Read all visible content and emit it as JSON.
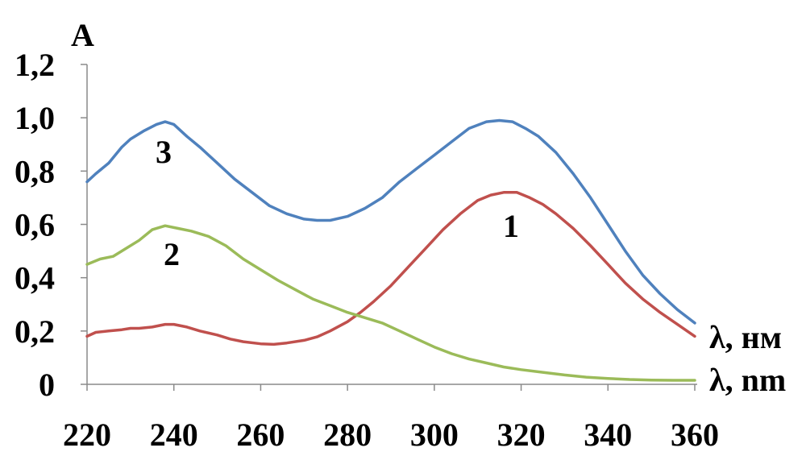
{
  "chart_data": {
    "type": "line",
    "title": "",
    "ylabel": "A",
    "xlabels": [
      "λ, нм",
      "λ, nm"
    ],
    "xlim": [
      220,
      360
    ],
    "ylim": [
      0,
      1.2
    ],
    "x_ticks": [
      "220",
      "240",
      "260",
      "280",
      "300",
      "320",
      "340",
      "360"
    ],
    "y_ticks": [
      "0",
      "0,2",
      "0,4",
      "0,6",
      "0,8",
      "1,0",
      "1,2"
    ],
    "grid": false,
    "legend": "none",
    "series": [
      {
        "name": "1",
        "color": "#c0504d",
        "x": [
          220,
          222,
          225,
          228,
          230,
          232,
          235,
          238,
          240,
          243,
          246,
          250,
          253,
          256,
          260,
          263,
          266,
          270,
          273,
          276,
          280,
          283,
          286,
          290,
          294,
          298,
          302,
          306,
          310,
          313,
          316,
          319,
          322,
          325,
          328,
          332,
          336,
          340,
          344,
          348,
          352,
          356,
          360
        ],
        "values": [
          0.18,
          0.195,
          0.2,
          0.205,
          0.21,
          0.21,
          0.215,
          0.225,
          0.225,
          0.215,
          0.2,
          0.185,
          0.17,
          0.16,
          0.152,
          0.15,
          0.155,
          0.165,
          0.178,
          0.2,
          0.235,
          0.27,
          0.31,
          0.37,
          0.44,
          0.51,
          0.58,
          0.64,
          0.69,
          0.71,
          0.72,
          0.72,
          0.7,
          0.675,
          0.64,
          0.585,
          0.52,
          0.45,
          0.38,
          0.32,
          0.27,
          0.225,
          0.18
        ]
      },
      {
        "name": "2",
        "color": "#9bbb59",
        "x": [
          220,
          223,
          226,
          229,
          232,
          235,
          238,
          241,
          244,
          248,
          252,
          256,
          260,
          264,
          268,
          272,
          276,
          280,
          284,
          288,
          292,
          296,
          300,
          304,
          308,
          312,
          316,
          320,
          325,
          330,
          335,
          340,
          345,
          350,
          355,
          360
        ],
        "values": [
          0.45,
          0.47,
          0.48,
          0.51,
          0.54,
          0.58,
          0.595,
          0.585,
          0.575,
          0.555,
          0.52,
          0.47,
          0.43,
          0.39,
          0.355,
          0.32,
          0.295,
          0.27,
          0.25,
          0.23,
          0.2,
          0.17,
          0.14,
          0.115,
          0.095,
          0.08,
          0.065,
          0.055,
          0.045,
          0.035,
          0.027,
          0.022,
          0.018,
          0.016,
          0.015,
          0.015
        ]
      },
      {
        "name": "3",
        "color": "#4f81bd",
        "x": [
          220,
          222,
          225,
          228,
          230,
          233,
          236,
          238,
          240,
          243,
          246,
          250,
          254,
          258,
          262,
          266,
          270,
          273,
          276,
          280,
          284,
          288,
          292,
          296,
          300,
          304,
          308,
          312,
          315,
          318,
          321,
          324,
          328,
          332,
          336,
          340,
          344,
          348,
          352,
          356,
          360
        ],
        "values": [
          0.76,
          0.79,
          0.83,
          0.89,
          0.92,
          0.95,
          0.975,
          0.985,
          0.975,
          0.93,
          0.89,
          0.83,
          0.77,
          0.72,
          0.67,
          0.64,
          0.62,
          0.615,
          0.615,
          0.63,
          0.66,
          0.7,
          0.76,
          0.81,
          0.86,
          0.91,
          0.96,
          0.985,
          0.99,
          0.985,
          0.96,
          0.93,
          0.87,
          0.79,
          0.7,
          0.6,
          0.5,
          0.41,
          0.34,
          0.28,
          0.23
        ]
      }
    ],
    "curve_labels": [
      "1",
      "2",
      "3"
    ]
  }
}
